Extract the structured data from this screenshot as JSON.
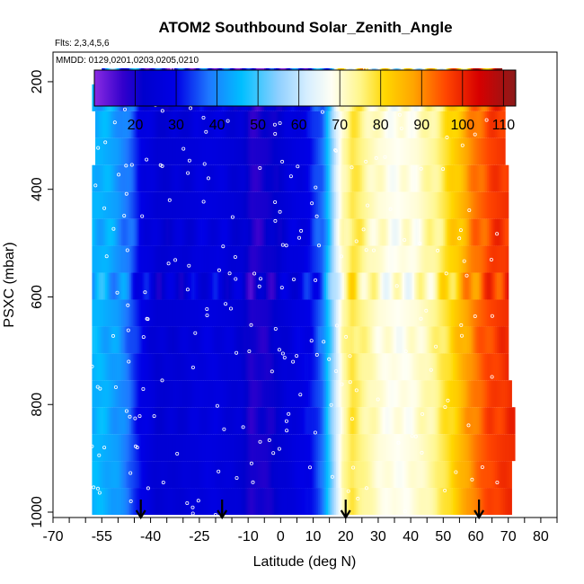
{
  "chart_data": {
    "type": "heatmap",
    "title": "ATOM2 Southbound Solar_Zenith_Angle",
    "subtitle_flights": "Flts: 2,3,4,5,6",
    "subtitle_dates": "MMDD: 0129,0201,0203,0205,0210",
    "xlabel": "Latitude (deg N)",
    "ylabel": "PSXC (mbar)",
    "xlim": [
      -70,
      85
    ],
    "ylim": [
      1010,
      145
    ],
    "y_reversed": true,
    "xticks": [
      -70,
      -55,
      -40,
      -25,
      -10,
      0,
      10,
      20,
      30,
      40,
      50,
      60,
      70,
      80
    ],
    "xtick_labels": [
      "-70",
      "-55",
      "-40",
      "-25",
      "-10",
      "0",
      "10",
      "20",
      "30",
      "40",
      "50",
      "60",
      "70",
      "80"
    ],
    "yticks": [
      200,
      400,
      600,
      800,
      1000
    ],
    "ytick_labels": [
      "200",
      "400",
      "600",
      "800",
      "1000"
    ],
    "colorbar": {
      "min": 10,
      "max": 113,
      "ticks": [
        20,
        30,
        40,
        50,
        60,
        70,
        80,
        90,
        100,
        110
      ],
      "tick_labels": [
        "20",
        "30",
        "40",
        "50",
        "60",
        "70",
        "80",
        "90",
        "100",
        "110"
      ],
      "stops": [
        {
          "value": 10,
          "color": "#8A2BE2"
        },
        {
          "value": 17,
          "color": "#3300CC"
        },
        {
          "value": 22,
          "color": "#0000CD"
        },
        {
          "value": 30,
          "color": "#0000E6"
        },
        {
          "value": 38,
          "color": "#1E78FF"
        },
        {
          "value": 46,
          "color": "#00BFFF"
        },
        {
          "value": 55,
          "color": "#8FD0FF"
        },
        {
          "value": 62,
          "color": "#D6EEFF"
        },
        {
          "value": 68,
          "color": "#FFFFF4"
        },
        {
          "value": 75,
          "color": "#FFF68A"
        },
        {
          "value": 81,
          "color": "#FFD700"
        },
        {
          "value": 88,
          "color": "#FFA500"
        },
        {
          "value": 96,
          "color": "#FF4500"
        },
        {
          "value": 104,
          "color": "#D70000"
        },
        {
          "value": 113,
          "color": "#8B1A1A"
        }
      ]
    },
    "sza_profile": [
      {
        "lat": -56,
        "sza": 45
      },
      {
        "lat": -50,
        "sza": 42
      },
      {
        "lat": -46,
        "sza": 36
      },
      {
        "lat": -43,
        "sza": 30
      },
      {
        "lat": -38,
        "sza": 24
      },
      {
        "lat": -30,
        "sza": 25
      },
      {
        "lat": -22,
        "sza": 28
      },
      {
        "lat": -16,
        "sza": 26
      },
      {
        "lat": -12,
        "sza": 24
      },
      {
        "lat": -9,
        "sza": 19
      },
      {
        "lat": -4,
        "sza": 20
      },
      {
        "lat": 0,
        "sza": 24
      },
      {
        "lat": 5,
        "sza": 28
      },
      {
        "lat": 9,
        "sza": 30
      },
      {
        "lat": 13,
        "sza": 38
      },
      {
        "lat": 16,
        "sza": 55
      },
      {
        "lat": 19,
        "sza": 72
      },
      {
        "lat": 22,
        "sza": 78
      },
      {
        "lat": 26,
        "sza": 74
      },
      {
        "lat": 30,
        "sza": 70
      },
      {
        "lat": 36,
        "sza": 68
      },
      {
        "lat": 42,
        "sza": 70
      },
      {
        "lat": 47,
        "sza": 74
      },
      {
        "lat": 52,
        "sza": 80
      },
      {
        "lat": 56,
        "sza": 86
      },
      {
        "lat": 60,
        "sza": 92
      },
      {
        "lat": 64,
        "sza": 96
      },
      {
        "lat": 68,
        "sza": 98
      },
      {
        "lat": 72,
        "sza": 99
      }
    ],
    "layers": [
      {
        "p_top": 175,
        "p_bot": 205,
        "lat_min": -55,
        "lat_max": 68,
        "offset": 16
      },
      {
        "p_top": 205,
        "p_bot": 255,
        "lat_min": -58,
        "lat_max": 69,
        "offset": 4
      },
      {
        "p_top": 255,
        "p_bot": 305,
        "lat_min": -57,
        "lat_max": 69,
        "offset": 2
      },
      {
        "p_top": 305,
        "p_bot": 355,
        "lat_min": -57,
        "lat_max": 69,
        "offset": 0
      },
      {
        "p_top": 355,
        "p_bot": 405,
        "lat_min": -58,
        "lat_max": 70,
        "offset": -2
      },
      {
        "p_top": 405,
        "p_bot": 455,
        "lat_min": -58,
        "lat_max": 70,
        "offset": 0
      },
      {
        "p_top": 455,
        "p_bot": 505,
        "lat_min": -58,
        "lat_max": 70,
        "offset": 3
      },
      {
        "p_top": 505,
        "p_bot": 555,
        "lat_min": -58,
        "lat_max": 70,
        "offset": 1
      },
      {
        "p_top": 555,
        "p_bot": 605,
        "lat_min": -58,
        "lat_max": 70,
        "offset": 5
      },
      {
        "p_top": 605,
        "p_bot": 655,
        "lat_min": -58,
        "lat_max": 70,
        "offset": 0
      },
      {
        "p_top": 655,
        "p_bot": 705,
        "lat_min": -58,
        "lat_max": 70,
        "offset": 2
      },
      {
        "p_top": 705,
        "p_bot": 755,
        "lat_min": -58,
        "lat_max": 70,
        "offset": -1
      },
      {
        "p_top": 755,
        "p_bot": 805,
        "lat_min": -58,
        "lat_max": 71,
        "offset": 1
      },
      {
        "p_top": 805,
        "p_bot": 855,
        "lat_min": -58,
        "lat_max": 72,
        "offset": 2
      },
      {
        "p_top": 855,
        "p_bot": 905,
        "lat_min": -58,
        "lat_max": 72,
        "offset": 0
      },
      {
        "p_top": 905,
        "p_bot": 955,
        "lat_min": -58,
        "lat_max": 71,
        "offset": 1
      },
      {
        "p_top": 955,
        "p_bot": 1005,
        "lat_min": -58,
        "lat_max": 71,
        "offset": -1
      }
    ],
    "arrow_latitudes": [
      -43,
      -18,
      20,
      61
    ]
  }
}
